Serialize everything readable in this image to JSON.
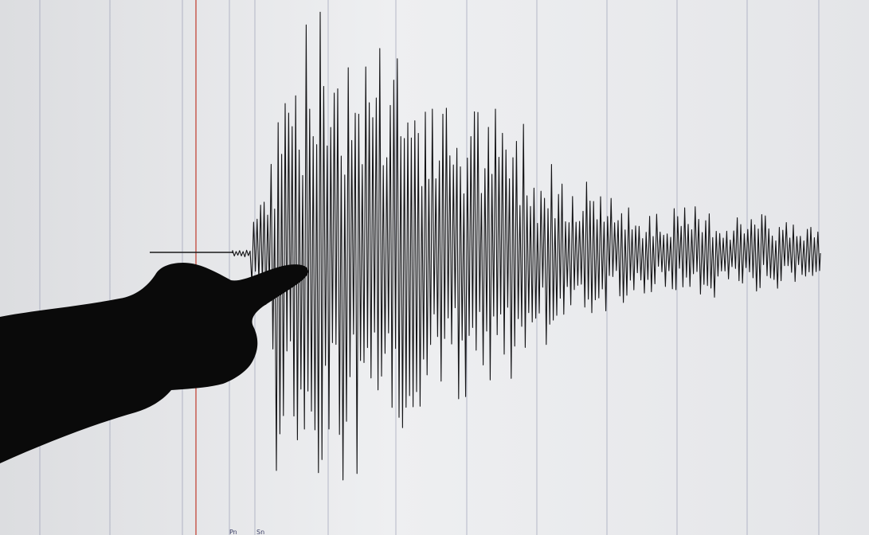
{
  "scene": {
    "screen_color": "#e6e7e9",
    "gridline_color": "#8e93ad",
    "trace_color": "#141416",
    "marker_color": "#c0392b",
    "silhouette_color": "#0a0a0a",
    "icon": "pointing-hand-silhouette"
  },
  "phase_labels": {
    "p_wave": "Pn",
    "s_wave": "Sn"
  }
}
